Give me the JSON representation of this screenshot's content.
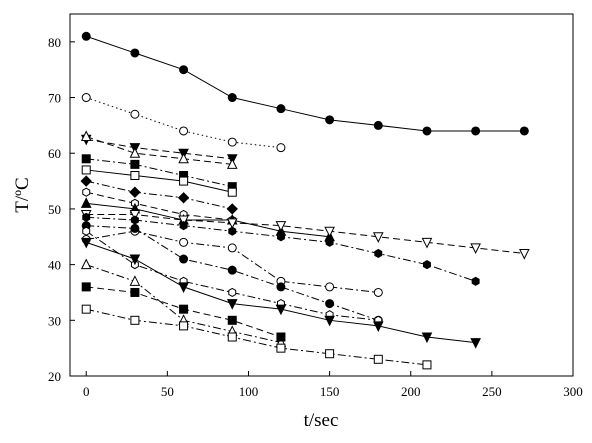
{
  "chart_data": {
    "type": "scatter",
    "title": "",
    "xlabel": "t/sec",
    "ylabel": "T/ºC",
    "xlim": [
      -10,
      300
    ],
    "ylim": [
      20,
      85
    ],
    "xticks": [
      0,
      50,
      100,
      150,
      200,
      250,
      300
    ],
    "yticks": [
      20,
      30,
      40,
      50,
      60,
      70,
      80
    ],
    "grid": false,
    "legend": "none",
    "series": [
      {
        "marker": "circle-filled",
        "dash": "solid",
        "color": "#000000",
        "x": [
          0,
          30,
          60,
          90,
          120,
          150,
          180,
          210,
          240,
          270
        ],
        "y": [
          81,
          78,
          75,
          70,
          68,
          66,
          65,
          64,
          64,
          64
        ]
      },
      {
        "marker": "circle-open",
        "dash": "dot",
        "color": "#000000",
        "x": [
          0,
          30,
          60,
          90,
          120
        ],
        "y": [
          70,
          67,
          64,
          62,
          61
        ]
      },
      {
        "marker": "triangle-down-filled",
        "dash": "dash",
        "color": "#000000",
        "x": [
          0,
          30,
          60,
          90
        ],
        "y": [
          62.5,
          61,
          60,
          59
        ]
      },
      {
        "marker": "triangle-up-open",
        "dash": "dash",
        "color": "#000000",
        "x": [
          0,
          30,
          60,
          90
        ],
        "y": [
          63,
          60,
          59,
          58
        ]
      },
      {
        "marker": "square-filled",
        "dash": "dashdot",
        "color": "#000000",
        "x": [
          0,
          30,
          60,
          90
        ],
        "y": [
          59,
          58,
          56,
          54
        ]
      },
      {
        "marker": "square-open",
        "dash": "solid",
        "color": "#000000",
        "x": [
          0,
          30,
          60,
          90
        ],
        "y": [
          57,
          56,
          55,
          53
        ]
      },
      {
        "marker": "diamond-filled",
        "dash": "dashdot",
        "color": "#000000",
        "x": [
          0,
          30,
          60,
          90
        ],
        "y": [
          55,
          53,
          52,
          50
        ]
      },
      {
        "marker": "hexagon-open",
        "dash": "dash",
        "color": "#000000",
        "x": [
          0,
          30,
          60,
          90
        ],
        "y": [
          53,
          51,
          49,
          48
        ]
      },
      {
        "marker": "triangle-up-filled",
        "dash": "solid",
        "color": "#000000",
        "x": [
          0,
          30,
          60,
          90,
          120,
          150
        ],
        "y": [
          51,
          50,
          48,
          48,
          46,
          45
        ]
      },
      {
        "marker": "triangle-down-open",
        "dash": "dash",
        "color": "#000000",
        "x": [
          0,
          30,
          60,
          90,
          120,
          150,
          180,
          210,
          240,
          270
        ],
        "y": [
          49,
          49,
          48,
          47.5,
          47,
          46,
          45,
          44,
          43,
          42
        ]
      },
      {
        "marker": "hexagon-filled",
        "dash": "dashdot",
        "color": "#000000",
        "x": [
          0,
          30,
          60,
          90,
          120,
          150,
          180,
          210,
          240
        ],
        "y": [
          48.5,
          48,
          47,
          46,
          45,
          44,
          42,
          40,
          37
        ]
      },
      {
        "marker": "circle-open",
        "dash": "dashdot",
        "color": "#000000",
        "x": [
          0,
          30,
          60,
          90,
          120,
          150,
          180
        ],
        "y": [
          44.5,
          46,
          44,
          43,
          37,
          36,
          35
        ]
      },
      {
        "marker": "circle-filled",
        "dash": "dashdot",
        "color": "#000000",
        "x": [
          0,
          30,
          60,
          90,
          120,
          150,
          180
        ],
        "y": [
          47,
          46.5,
          41,
          39,
          36,
          33,
          30
        ]
      },
      {
        "marker": "hexagon-open",
        "dash": "dashdot",
        "color": "#000000",
        "x": [
          0,
          30,
          60,
          90,
          120,
          150,
          180
        ],
        "y": [
          46,
          40,
          37,
          35,
          33,
          31,
          30
        ]
      },
      {
        "marker": "triangle-down-filled",
        "dash": "solid",
        "color": "#000000",
        "x": [
          0,
          30,
          60,
          90,
          120,
          150,
          180,
          210,
          240
        ],
        "y": [
          44,
          41,
          36,
          33,
          32,
          30,
          29,
          27,
          26
        ]
      },
      {
        "marker": "triangle-up-open",
        "dash": "dashdot",
        "color": "#000000",
        "x": [
          0,
          30,
          60,
          90,
          120
        ],
        "y": [
          40,
          37,
          30,
          28,
          26
        ]
      },
      {
        "marker": "square-filled",
        "dash": "dash",
        "color": "#000000",
        "x": [
          0,
          30,
          60,
          90,
          120
        ],
        "y": [
          36,
          35,
          32,
          30,
          27
        ]
      },
      {
        "marker": "square-open",
        "dash": "dashdot",
        "color": "#000000",
        "x": [
          0,
          30,
          60,
          90,
          120,
          150,
          180,
          210
        ],
        "y": [
          32,
          30,
          29,
          27,
          25,
          24,
          23,
          22
        ]
      }
    ]
  }
}
